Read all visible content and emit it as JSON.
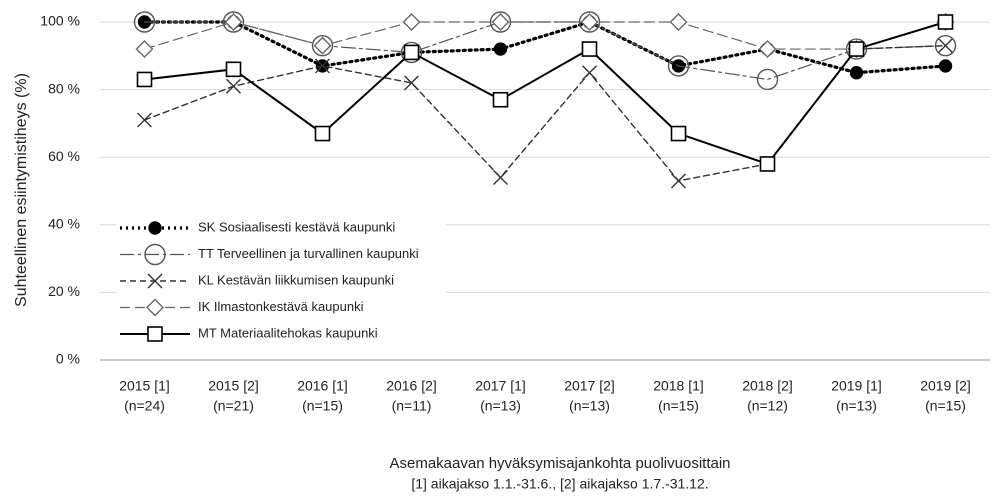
{
  "chart_data": {
    "type": "line",
    "ylabel": "Suhteellinen esiintymistiheys  (%)",
    "xlabel": "Asemakaavan hyväksymisajankohta puolivuosittain",
    "xlabel_note": "[1] aikajakso 1.1.-31.6., [2] aikajakso 1.7.-31.12.",
    "categories": [
      "2015 [1]",
      "2015 [2]",
      "2016 [1]",
      "2016 [2]",
      "2017 [1]",
      "2017 [2]",
      "2018 [1]",
      "2018 [2]",
      "2019 [1]",
      "2019 [2]"
    ],
    "category_notes": [
      "(n=24)",
      "(n=21)",
      "(n=15)",
      "(n=11)",
      "(n=13)",
      "(n=13)",
      "(n=15)",
      "(n=12)",
      "(n=13)",
      "(n=15)"
    ],
    "ylim": [
      0,
      100
    ],
    "yticks": [
      {
        "value": 0,
        "label": "0 %"
      },
      {
        "value": 20,
        "label": "20 %"
      },
      {
        "value": 40,
        "label": "40 %"
      },
      {
        "value": 60,
        "label": "60 %"
      },
      {
        "value": 80,
        "label": "80 %"
      },
      {
        "value": 100,
        "label": "100 %"
      }
    ],
    "grid": true,
    "legend": "lower left",
    "series": [
      {
        "name": "SK Sosiaalisesti kestävä kaupunki",
        "color": "#000000",
        "marker": "filled-circle",
        "dash": "dotted",
        "values": [
          100,
          100,
          87,
          91,
          92,
          100,
          87,
          92,
          85,
          87
        ]
      },
      {
        "name": "TT Terveellinen ja turvallinen kaupunki",
        "color": "#555555",
        "marker": "open-circle",
        "dash": "dash-dot",
        "values": [
          100,
          100,
          93,
          91,
          100,
          100,
          87,
          83,
          92,
          93
        ]
      },
      {
        "name": "KL Kestävän liikkumisen kaupunki",
        "color": "#333333",
        "marker": "cross",
        "dash": "dashed",
        "values": [
          71,
          81,
          87,
          82,
          54,
          85,
          53,
          58,
          92,
          93
        ]
      },
      {
        "name": "IK Ilmastonkestävä kaupunki",
        "color": "#666666",
        "marker": "diamond",
        "dash": "long-dash",
        "values": [
          92,
          100,
          93,
          100,
          100,
          100,
          100,
          92,
          92,
          100
        ]
      },
      {
        "name": "MT Materiaalitehokas kaupunki",
        "color": "#000000",
        "marker": "square",
        "dash": "solid",
        "values": [
          83,
          86,
          67,
          91,
          77,
          92,
          67,
          58,
          92,
          100
        ]
      }
    ]
  }
}
